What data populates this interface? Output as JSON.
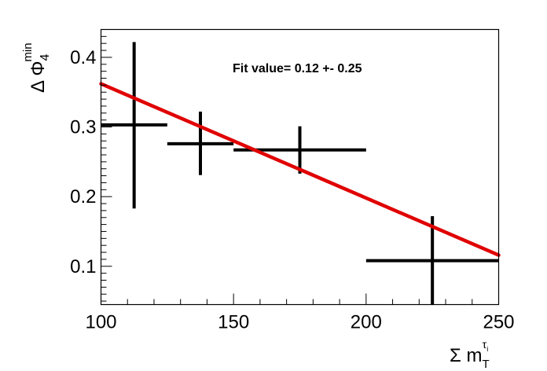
{
  "chart_data": {
    "type": "scatter",
    "title": "",
    "xlabel": {
      "main": "Σ m",
      "sub": "T",
      "sup": "τ",
      "supsub": "i"
    },
    "ylabel": {
      "main": "Δ Φ",
      "sub": "4",
      "sup": "min"
    },
    "xlim": [
      100,
      250
    ],
    "ylim": [
      0.045,
      0.44
    ],
    "x_ticks": [
      100,
      150,
      200,
      250
    ],
    "x_tick_labels": [
      "100",
      "150",
      "200",
      "250"
    ],
    "y_ticks": [
      0.1,
      0.2,
      0.3,
      0.4
    ],
    "y_tick_labels": [
      "0.1",
      "0.2",
      "0.3",
      "0.4"
    ],
    "grid": false,
    "points": [
      {
        "x": 112.5,
        "xlo": 100,
        "xhi": 125,
        "y": 0.303,
        "ylo": 0.183,
        "yhi": 0.422
      },
      {
        "x": 137.5,
        "xlo": 125,
        "xhi": 150,
        "y": 0.276,
        "ylo": 0.231,
        "yhi": 0.322
      },
      {
        "x": 175,
        "xlo": 150,
        "xhi": 200,
        "y": 0.267,
        "ylo": 0.233,
        "yhi": 0.301
      },
      {
        "x": 225,
        "xlo": 200,
        "xhi": 250,
        "y": 0.108,
        "ylo": 0.045,
        "yhi": 0.172
      }
    ],
    "fit_line": {
      "x": [
        100,
        250
      ],
      "y": [
        0.362,
        0.116
      ],
      "color": "#e00000"
    },
    "annotation": "Fit value= 0.12 +- 0.25"
  }
}
